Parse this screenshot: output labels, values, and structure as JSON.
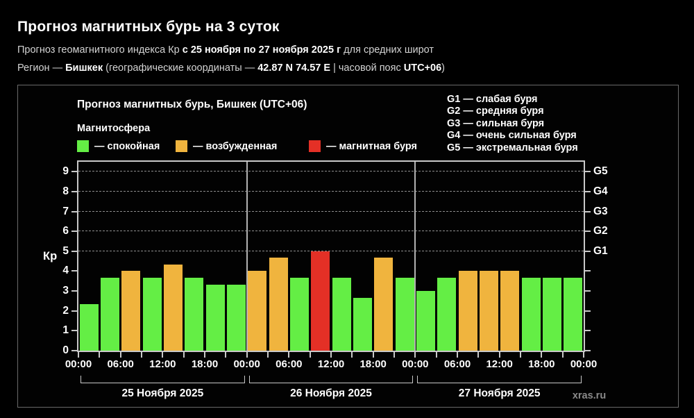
{
  "header": {
    "title": "Прогноз магнитных бурь на 3 суток",
    "line1": [
      {
        "text": "Прогноз геомагнитного индекса Кр ",
        "bold": false
      },
      {
        "text": "с 25 ноября по 27 ноября 2025 г",
        "bold": true
      },
      {
        "text": " для средних широт",
        "bold": false
      }
    ],
    "line2": [
      {
        "text": "Регион — ",
        "bold": false
      },
      {
        "text": "Бишкек",
        "bold": true
      },
      {
        "text": " (географические координаты — ",
        "bold": false
      },
      {
        "text": "42.87 N 74.57 E",
        "bold": true
      },
      {
        "text": " | часовой пояс ",
        "bold": false
      },
      {
        "text": "UTC+06",
        "bold": true
      },
      {
        "text": ")",
        "bold": false
      }
    ]
  },
  "chart": {
    "title": "Прогноз магнитных бурь, Бишкек (UTC+06)",
    "legend": {
      "title": "Магнитосфера",
      "items": [
        {
          "label": "— спокойная",
          "level": "quiet"
        },
        {
          "label": "— возбужденная",
          "level": "excited"
        },
        {
          "label": "— магнитная буря",
          "level": "storm"
        }
      ]
    },
    "g_legend": [
      "G1 — слабая буря",
      "G2 — средняя буря",
      "G3 — сильная буря",
      "G4 — очень сильная буря",
      "G5 — экстремальная буря"
    ],
    "watermark": "xras.ru"
  },
  "chart_data": {
    "type": "bar",
    "title": "Прогноз магнитных бурь, Бишкек (UTC+06)",
    "ylabel": "Кр",
    "ylim": [
      0,
      9.5
    ],
    "yticks": [
      0,
      1,
      2,
      3,
      4,
      5,
      6,
      7,
      8,
      9
    ],
    "gridlines_kp": [
      5,
      6,
      7,
      8,
      9
    ],
    "right_axis_labels": [
      {
        "kp": 5,
        "label": "G1"
      },
      {
        "kp": 6,
        "label": "G2"
      },
      {
        "kp": 7,
        "label": "G3"
      },
      {
        "kp": 8,
        "label": "G4"
      },
      {
        "kp": 9,
        "label": "G5"
      }
    ],
    "hours_per_bar": 3,
    "time_tick_labels": [
      "00:00",
      "06:00",
      "12:00",
      "18:00",
      "00:00",
      "06:00",
      "12:00",
      "18:00",
      "00:00",
      "06:00",
      "12:00",
      "18:00",
      "00:00"
    ],
    "days": [
      {
        "date": "25 Ноября 2025",
        "values": [
          2.33,
          3.67,
          4.0,
          3.67,
          4.33,
          3.67,
          3.33,
          3.33
        ],
        "levels": [
          "quiet",
          "quiet",
          "excited",
          "quiet",
          "excited",
          "quiet",
          "quiet",
          "quiet"
        ]
      },
      {
        "date": "26 Ноября 2025",
        "values": [
          4.0,
          4.67,
          3.67,
          5.0,
          3.67,
          2.67,
          4.67,
          3.67
        ],
        "levels": [
          "excited",
          "excited",
          "quiet",
          "storm",
          "quiet",
          "quiet",
          "excited",
          "quiet"
        ]
      },
      {
        "date": "27 Ноября 2025",
        "values": [
          3.0,
          3.67,
          4.0,
          4.0,
          4.0,
          3.67,
          3.67,
          3.67
        ],
        "levels": [
          "quiet",
          "quiet",
          "excited",
          "excited",
          "excited",
          "quiet",
          "quiet",
          "quiet"
        ]
      }
    ],
    "level_colors": {
      "quiet": "#64ee45",
      "excited": "#f0b43e",
      "storm": "#e43026"
    },
    "axis_color": "#c9c9c9",
    "grid_color": "#8f8f8f"
  }
}
